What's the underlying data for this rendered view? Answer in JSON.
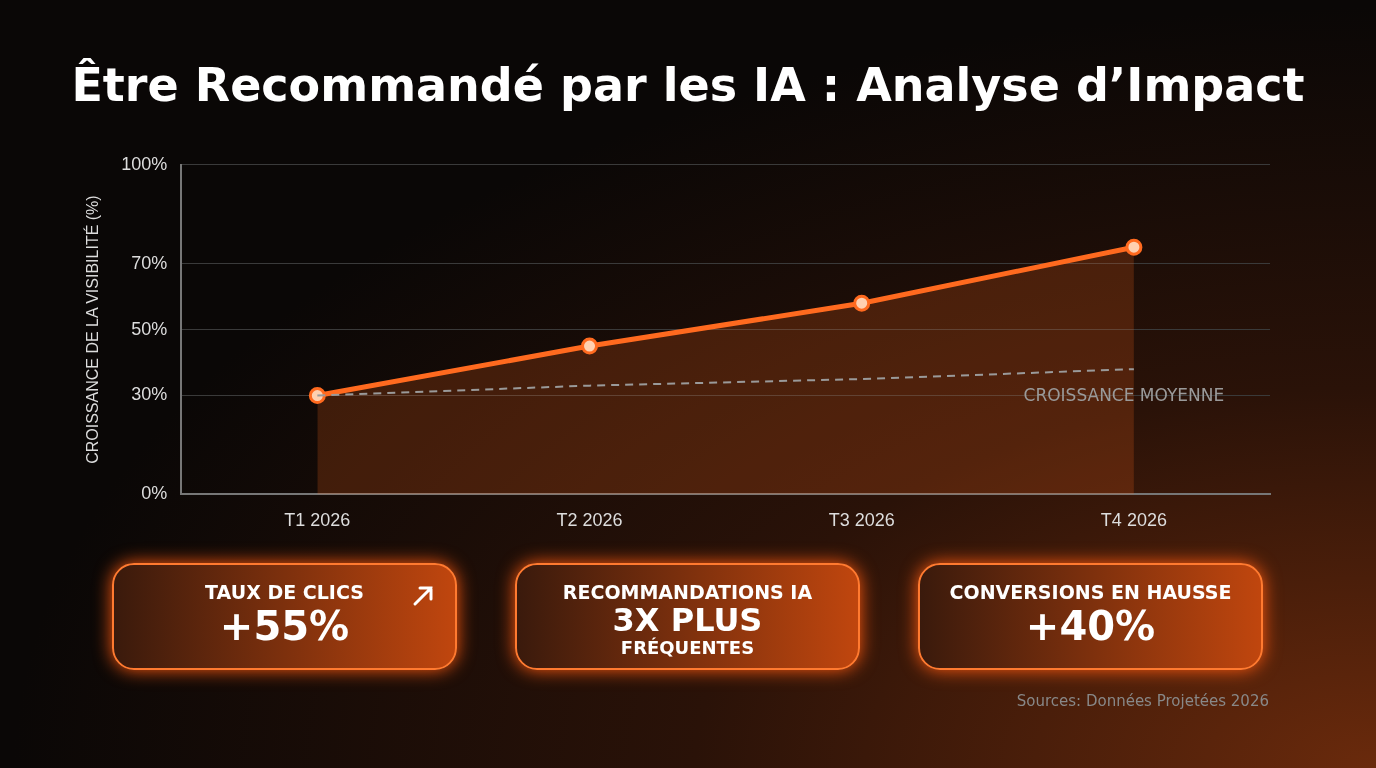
{
  "chart_data": [
    {
      "type": "line",
      "title": "Être Recommandé par les IA : Analyse d’Impact",
      "ylabel": "CROISSANCE DE LA VISIBILITÉ (%)",
      "categories": [
        "T1 2026",
        "T2 2026",
        "T3 2026",
        "T4 2026"
      ],
      "series": [
        {
          "type": "area",
          "color": "#ff6a1f",
          "values": [
            30,
            45,
            58,
            75
          ],
          "marker": "circle",
          "line_style": "solid"
        },
        {
          "name": "CROISSANCE MOYENNE",
          "color": "#9a9a9a",
          "values": [
            30,
            33,
            35,
            38
          ],
          "marker": "none",
          "line_style": "dashed"
        }
      ],
      "ylim": [
        0,
        100
      ],
      "yticks": [
        {
          "value": 0,
          "label": "0%"
        },
        {
          "value": 30,
          "label": "30%"
        },
        {
          "value": 50,
          "label": "50%"
        },
        {
          "value": 70,
          "label": "70%"
        },
        {
          "value": 100,
          "label": "100%"
        }
      ],
      "grid": "y",
      "annotations": [
        "Sources: Données Projetées 2026"
      ]
    },
    {
      "type": "other",
      "title": "TAUX DE CLICS",
      "annotations": [
        "+55%"
      ]
    },
    {
      "type": "other",
      "title": "RECOMMANDATIONS IA",
      "annotations": [
        "3X PLUS",
        "FRÉQUENTES"
      ]
    },
    {
      "type": "other",
      "title": "CONVERSIONS EN HAUSSE",
      "annotations": [
        "+40%"
      ]
    }
  ]
}
